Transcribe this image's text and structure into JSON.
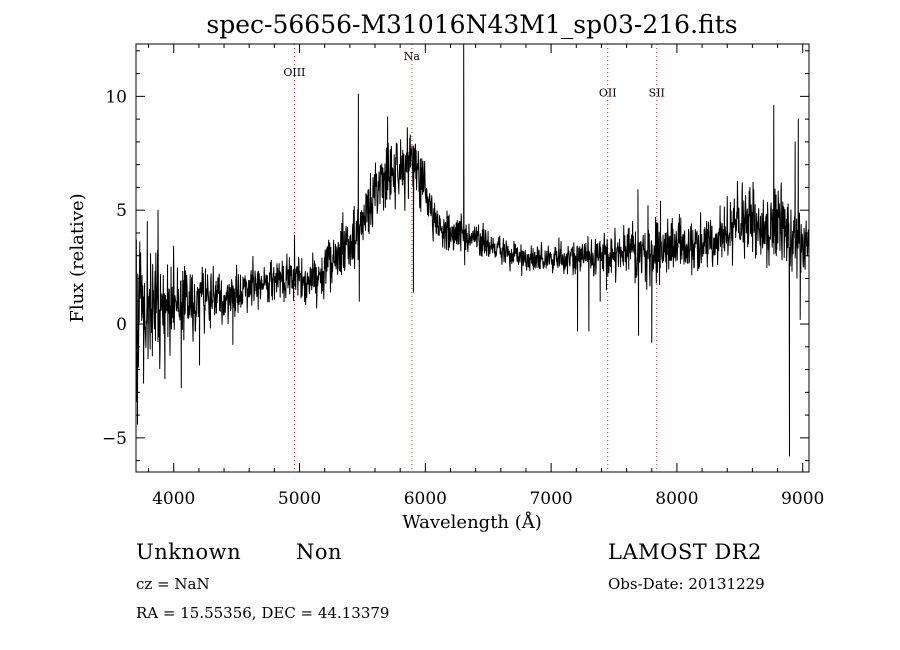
{
  "chart_data": {
    "type": "line",
    "title": "spec-56656-M31016N43M1_sp03-216.fits",
    "xlabel": "Wavelength (Å)",
    "ylabel": "Flux (relative)",
    "xlim": [
      3700,
      9050
    ],
    "ylim": [
      -6.5,
      12.3
    ],
    "xticks": [
      4000,
      5000,
      6000,
      7000,
      8000,
      9000
    ],
    "xtick_labels": [
      "4000",
      "5000",
      "6000",
      "7000",
      "8000",
      "9000"
    ],
    "yticks": [
      -5,
      0,
      5,
      10
    ],
    "ytick_labels": [
      "−5",
      "0",
      "5",
      "10"
    ],
    "grid": false,
    "line_color": "#000000",
    "marker_color": "#cc3333",
    "spectral_lines": [
      {
        "label": "OIII",
        "x": 4959,
        "label_y": 10.9
      },
      {
        "label": "Na",
        "x": 5893,
        "label_y": 11.6
      },
      {
        "label": "OII",
        "x": 7450,
        "label_y": 10.0
      },
      {
        "label": "SII",
        "x": 7840,
        "label_y": 10.0
      }
    ],
    "continuum": [
      [
        3700,
        1.2
      ],
      [
        3800,
        0.8
      ],
      [
        3900,
        0.5
      ],
      [
        4000,
        0.9
      ],
      [
        4100,
        1.0
      ],
      [
        4200,
        1.1
      ],
      [
        4300,
        1.3
      ],
      [
        4400,
        1.0
      ],
      [
        4500,
        1.3
      ],
      [
        4600,
        1.6
      ],
      [
        4700,
        1.8
      ],
      [
        4800,
        1.9
      ],
      [
        4900,
        2.0
      ],
      [
        5000,
        2.0
      ],
      [
        5100,
        2.0
      ],
      [
        5200,
        2.3
      ],
      [
        5300,
        2.9
      ],
      [
        5400,
        3.6
      ],
      [
        5500,
        4.6
      ],
      [
        5600,
        5.6
      ],
      [
        5700,
        6.4
      ],
      [
        5800,
        6.9
      ],
      [
        5900,
        7.1
      ],
      [
        5950,
        6.9
      ],
      [
        6000,
        5.8
      ],
      [
        6050,
        4.8
      ],
      [
        6100,
        4.4
      ],
      [
        6200,
        4.0
      ],
      [
        6300,
        3.9
      ],
      [
        6400,
        3.7
      ],
      [
        6500,
        3.5
      ],
      [
        6600,
        3.2
      ],
      [
        6700,
        3.0
      ],
      [
        6800,
        2.8
      ],
      [
        6900,
        2.8
      ],
      [
        7000,
        2.9
      ],
      [
        7100,
        2.9
      ],
      [
        7200,
        2.9
      ],
      [
        7300,
        2.8
      ],
      [
        7400,
        3.0
      ],
      [
        7500,
        3.2
      ],
      [
        7600,
        3.2
      ],
      [
        7700,
        3.1
      ],
      [
        7800,
        3.2
      ],
      [
        7900,
        3.5
      ],
      [
        8000,
        3.5
      ],
      [
        8100,
        3.4
      ],
      [
        8200,
        3.5
      ],
      [
        8300,
        3.6
      ],
      [
        8400,
        3.9
      ],
      [
        8500,
        4.5
      ],
      [
        8600,
        4.4
      ],
      [
        8700,
        4.0
      ],
      [
        8800,
        4.5
      ],
      [
        8900,
        3.8
      ],
      [
        9000,
        3.6
      ],
      [
        9050,
        3.6
      ]
    ],
    "noise": [
      [
        3700,
        2.2
      ],
      [
        3900,
        1.9
      ],
      [
        4100,
        1.3
      ],
      [
        4400,
        1.0
      ],
      [
        4700,
        0.8
      ],
      [
        5000,
        0.8
      ],
      [
        5400,
        1.2
      ],
      [
        5900,
        1.3
      ],
      [
        6100,
        0.7
      ],
      [
        6700,
        0.5
      ],
      [
        7200,
        0.6
      ],
      [
        7500,
        1.0
      ],
      [
        7800,
        1.2
      ],
      [
        8300,
        0.9
      ],
      [
        8600,
        1.3
      ],
      [
        9050,
        1.3
      ]
    ],
    "features": [
      [
        3705,
        -3.4
      ],
      [
        3712,
        -4.4
      ],
      [
        3730,
        3.6
      ],
      [
        3760,
        -2.6
      ],
      [
        3790,
        4.5
      ],
      [
        3830,
        -1.4
      ],
      [
        3875,
        5.0
      ],
      [
        3930,
        -2.4
      ],
      [
        4060,
        -2.8
      ],
      [
        4205,
        -1.8
      ],
      [
        4470,
        -0.9
      ],
      [
        4960,
        3.9
      ],
      [
        5468,
        10.1
      ],
      [
        5475,
        1.0
      ],
      [
        5700,
        9.1
      ],
      [
        5880,
        8.3
      ],
      [
        5905,
        1.4
      ],
      [
        6305,
        12.3
      ],
      [
        6313,
        2.6
      ],
      [
        7210,
        -0.3
      ],
      [
        7300,
        -0.3
      ],
      [
        7390,
        1.0
      ],
      [
        7440,
        1.5
      ],
      [
        7690,
        5.9
      ],
      [
        7695,
        -0.5
      ],
      [
        7770,
        5.2
      ],
      [
        7800,
        -0.8
      ],
      [
        7870,
        5.4
      ],
      [
        8400,
        5.6
      ],
      [
        8520,
        6.2
      ],
      [
        8580,
        6.0
      ],
      [
        8770,
        9.6
      ],
      [
        8790,
        3.0
      ],
      [
        8830,
        6.2
      ],
      [
        8870,
        4.6
      ],
      [
        8895,
        -5.8
      ],
      [
        8900,
        3.0
      ],
      [
        8940,
        8.0
      ],
      [
        8965,
        9.0
      ],
      [
        8980,
        0.2
      ]
    ],
    "seed": 56656,
    "samples": 1900
  },
  "info": {
    "class": "Unknown",
    "subclass": "Non",
    "survey": "LAMOST DR2",
    "cz": "cz = NaN",
    "obs_date": "Obs-Date: 20131229",
    "coords": "RA =  15.55356, DEC =  44.13379"
  }
}
